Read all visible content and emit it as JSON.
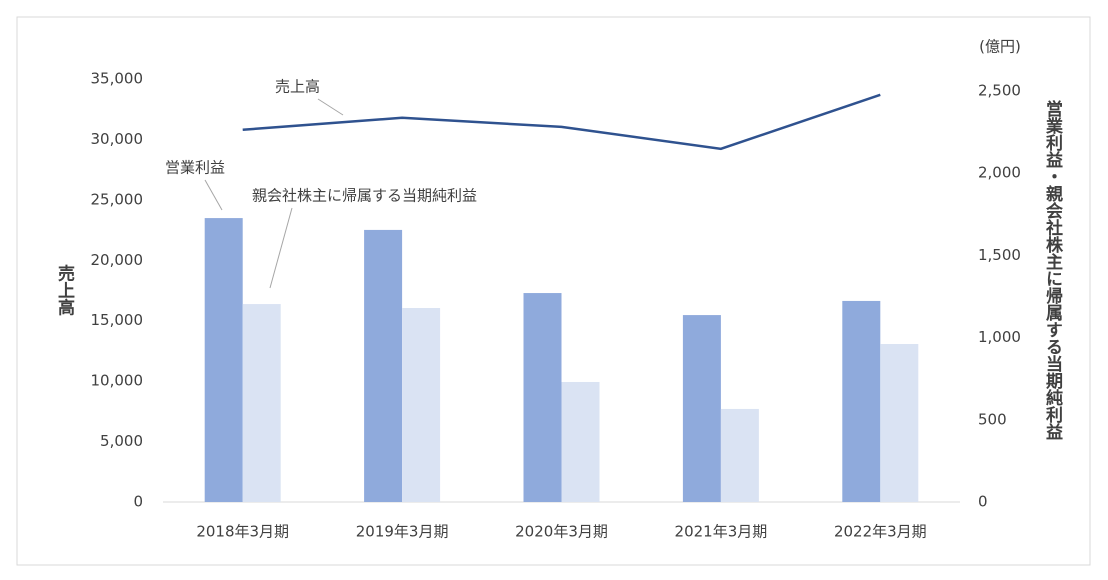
{
  "chart_data": {
    "type": "bar_line",
    "categories": [
      "2018年3月期",
      "2019年3月期",
      "2020年3月期",
      "2021年3月期",
      "2022年3月期"
    ],
    "series": [
      {
        "name": "売上高",
        "type": "line",
        "axis": "y",
        "color": "#2f528f",
        "values": [
          30800,
          31790,
          31040,
          29220,
          33690
        ]
      },
      {
        "name": "営業利益",
        "type": "bar",
        "axis": "y2",
        "color": "#8faadc",
        "values": [
          1727,
          1655,
          1271,
          1137,
          1223
        ]
      },
      {
        "name": "親会社株主に帰属する当期純利益",
        "type": "bar",
        "axis": "y2",
        "color": "#dae3f3",
        "values": [
          1204,
          1180,
          730,
          566,
          961
        ]
      }
    ],
    "ylabel": "売上高",
    "y2label": "営業利益・親会社株主に帰属する当期純利益",
    "y2unit": "(億円)",
    "ylim": [
      0,
      35000
    ],
    "yticks": [
      0,
      {
        "value": 5000,
        "label": "5,000"
      },
      {
        "value": 10000,
        "label": "10,000"
      },
      {
        "value": 15000,
        "label": "15,000"
      },
      {
        "value": 20000,
        "label": "20,000"
      },
      {
        "value": 25000,
        "label": "25,000"
      },
      {
        "value": 30000,
        "label": "30,000"
      },
      {
        "value": 35000,
        "label": "35,000"
      }
    ],
    "y2lim": [
      0,
      2500
    ],
    "y2ticks": [
      0,
      500,
      {
        "value": 1000,
        "label": "1,000"
      },
      {
        "value": 1500,
        "label": "1,500"
      },
      {
        "value": 2000,
        "label": "2,000"
      },
      {
        "value": 2500,
        "label": "2,500"
      }
    ]
  }
}
